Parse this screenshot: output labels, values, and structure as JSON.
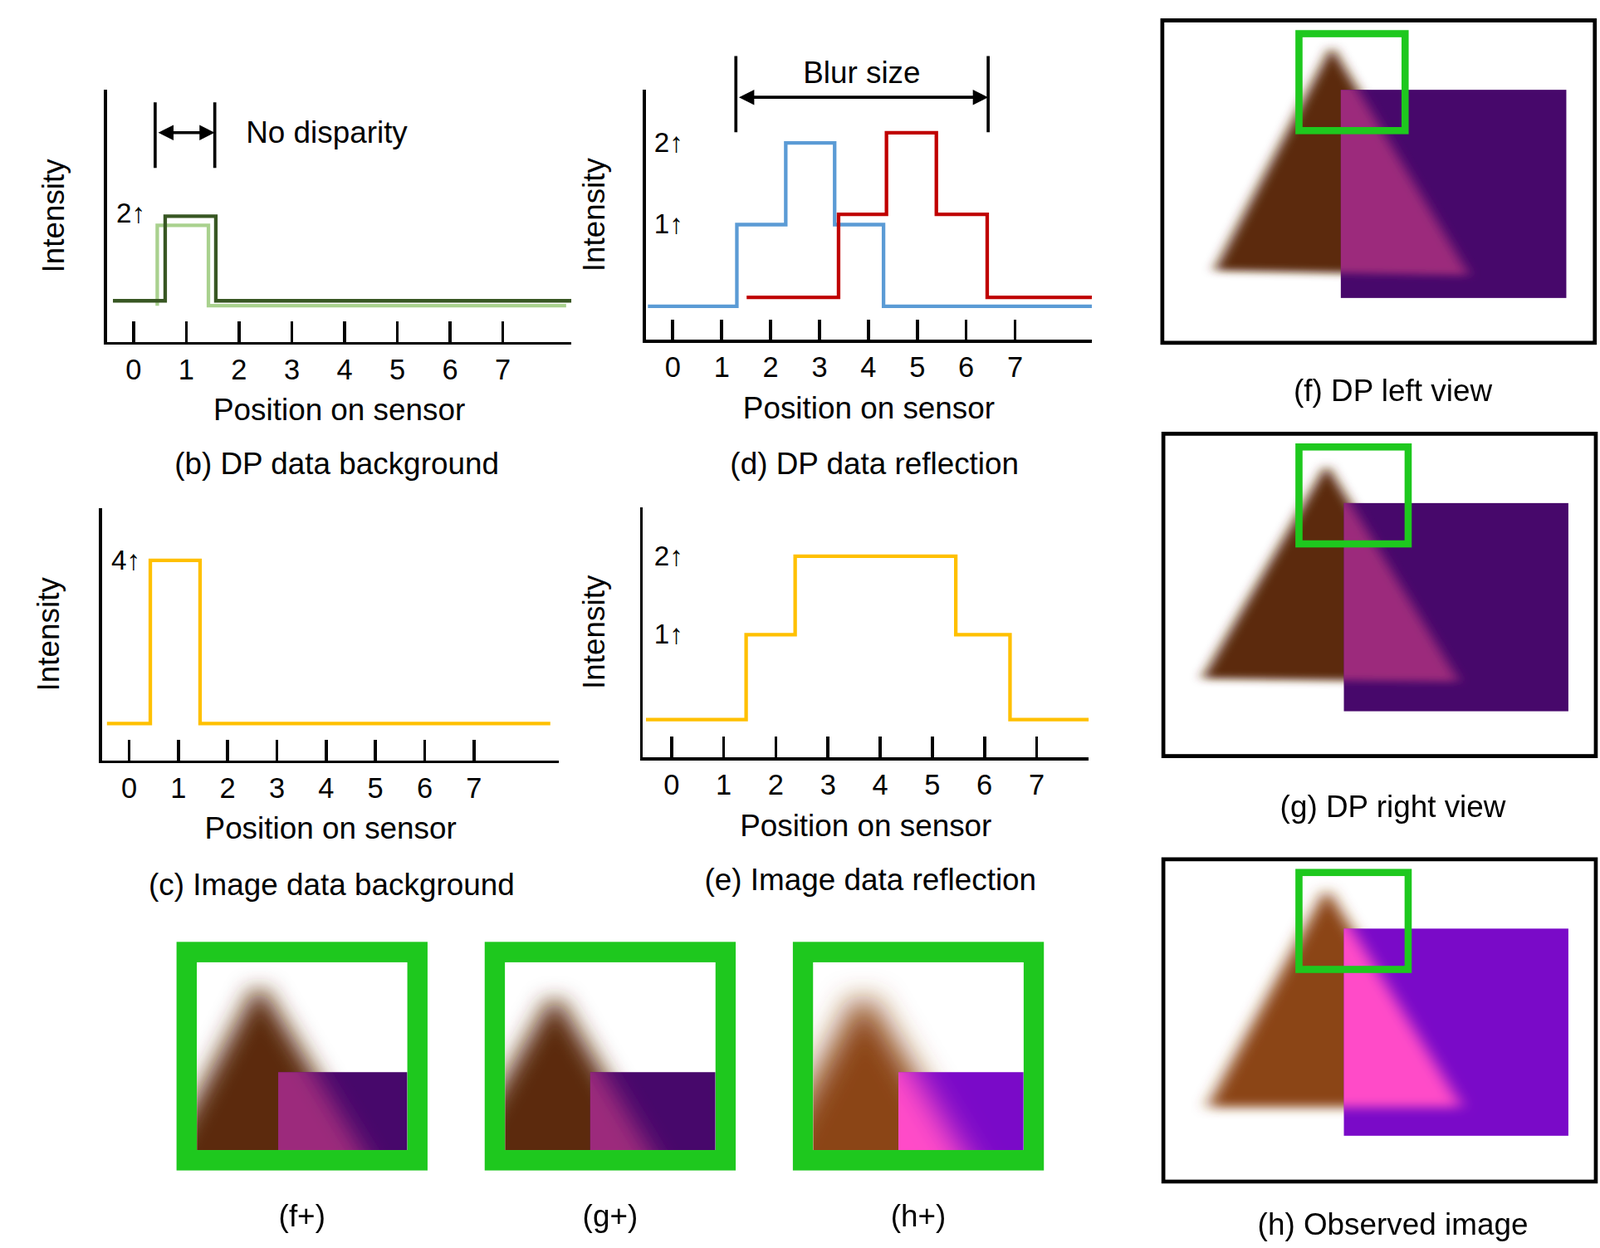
{
  "chart_data": [
    {
      "type": "line",
      "caption": "(b) DP data background",
      "xlabel": "Position on sensor",
      "ylabel": "Intensity",
      "xlim": [
        -0.5,
        8.3
      ],
      "xticks": [
        0,
        1,
        2,
        3,
        4,
        5,
        6,
        7
      ],
      "ylim": [
        -0.44,
        2.63
      ],
      "yticks": [],
      "tick_labels": "x",
      "series": [
        {
          "color": "#a9d18e",
          "x": [
            0.45,
            0.45,
            1.42,
            1.42,
            8.2
          ],
          "values": [
            0,
            0.98,
            0.98,
            0,
            0
          ]
        },
        {
          "color": "#385723",
          "x": [
            -0.39,
            0.6,
            0.6,
            1.56,
            1.56,
            8.3
          ],
          "values": [
            0.06,
            0.06,
            1.09,
            1.09,
            0.06,
            0.06
          ]
        }
      ],
      "annotations": [
        {
          "text": "2↑",
          "x": -0.04,
          "y": 1.12
        }
      ],
      "brackets": [
        {
          "text": "No disparity",
          "x0": 0.41,
          "x1": 1.54,
          "text_x": 2.1
        }
      ]
    },
    {
      "type": "line",
      "caption": "(c) Image data background",
      "xlabel": "Position on sensor",
      "ylabel": "Intensity",
      "xlim": [
        -0.55,
        8.73
      ],
      "xticks": [
        0,
        1,
        2,
        3,
        4,
        5,
        6,
        7
      ],
      "ylim": [
        -0.9,
        5.28
      ],
      "yticks": [],
      "tick_labels": "x",
      "series": [
        {
          "color": "#ffc000",
          "x": [
            -0.45,
            0.43,
            0.43,
            1.44,
            1.44,
            8.55
          ],
          "values": [
            0,
            0,
            4,
            4,
            0,
            0
          ]
        }
      ],
      "annotations": [
        {
          "text": "4↑",
          "x": -0.06,
          "y": 4
        }
      ],
      "brackets": []
    },
    {
      "type": "line",
      "caption": "(d) DP data reflection",
      "xlabel": "Position on sensor",
      "ylabel": "Intensity",
      "xlim": [
        -0.55,
        8.57
      ],
      "xticks": [
        0,
        1,
        2,
        3,
        4,
        5,
        6,
        7
      ],
      "ylim": [
        -0.41,
        2.65
      ],
      "yticks": [],
      "tick_labels": "x",
      "series": [
        {
          "color": "#5b9bd5",
          "x": [
            -0.51,
            1.31,
            1.31,
            2.31,
            2.31,
            3.31,
            3.31,
            4.31,
            4.31,
            8.57
          ],
          "values": [
            0,
            0,
            1,
            1,
            2,
            2,
            1,
            1,
            0,
            0
          ]
        },
        {
          "color": "#c00000",
          "x": [
            1.51,
            3.39,
            3.39,
            4.37,
            4.37,
            5.39,
            5.39,
            6.43,
            6.43,
            8.57
          ],
          "values": [
            0.11,
            0.11,
            1.125,
            1.125,
            2.125,
            2.125,
            1.125,
            1.125,
            0.11,
            0.11
          ]
        }
      ],
      "annotations": [
        {
          "text": "2↑",
          "x": -0.08,
          "y": 2
        },
        {
          "text": "1↑",
          "x": -0.08,
          "y": 1
        }
      ],
      "brackets": [
        {
          "text": "Blur size",
          "x0": 1.29,
          "x1": 6.45,
          "text_x": 3.86
        }
      ]
    },
    {
      "type": "line",
      "caption": "(e) Image data reflection",
      "xlabel": "Position on sensor",
      "ylabel": "Intensity",
      "xlim": [
        -0.55,
        8.0
      ],
      "xticks": [
        0,
        1,
        2,
        3,
        4,
        5,
        6,
        7
      ],
      "ylim": [
        -0.46,
        2.6
      ],
      "yticks": [],
      "tick_labels": "x",
      "series": [
        {
          "color": "#ffc000",
          "x": [
            -0.49,
            1.43,
            1.43,
            2.37,
            2.37,
            5.45,
            5.45,
            6.49,
            6.49,
            8.0
          ],
          "values": [
            0,
            0,
            1.04,
            1.04,
            2,
            2,
            1.04,
            1.04,
            0,
            0
          ]
        }
      ],
      "annotations": [
        {
          "text": "2↑",
          "x": -0.06,
          "y": 2
        },
        {
          "text": "1↑",
          "x": -0.06,
          "y": 1.04
        }
      ],
      "brackets": []
    }
  ],
  "image_panels": [
    {
      "caption": "(f) DP left view"
    },
    {
      "caption": "(g) DP right view"
    },
    {
      "caption": "(h) Observed image"
    }
  ],
  "insets": [
    {
      "caption": "(f+)"
    },
    {
      "caption": "(g+)"
    },
    {
      "caption": "(h+)"
    }
  ]
}
